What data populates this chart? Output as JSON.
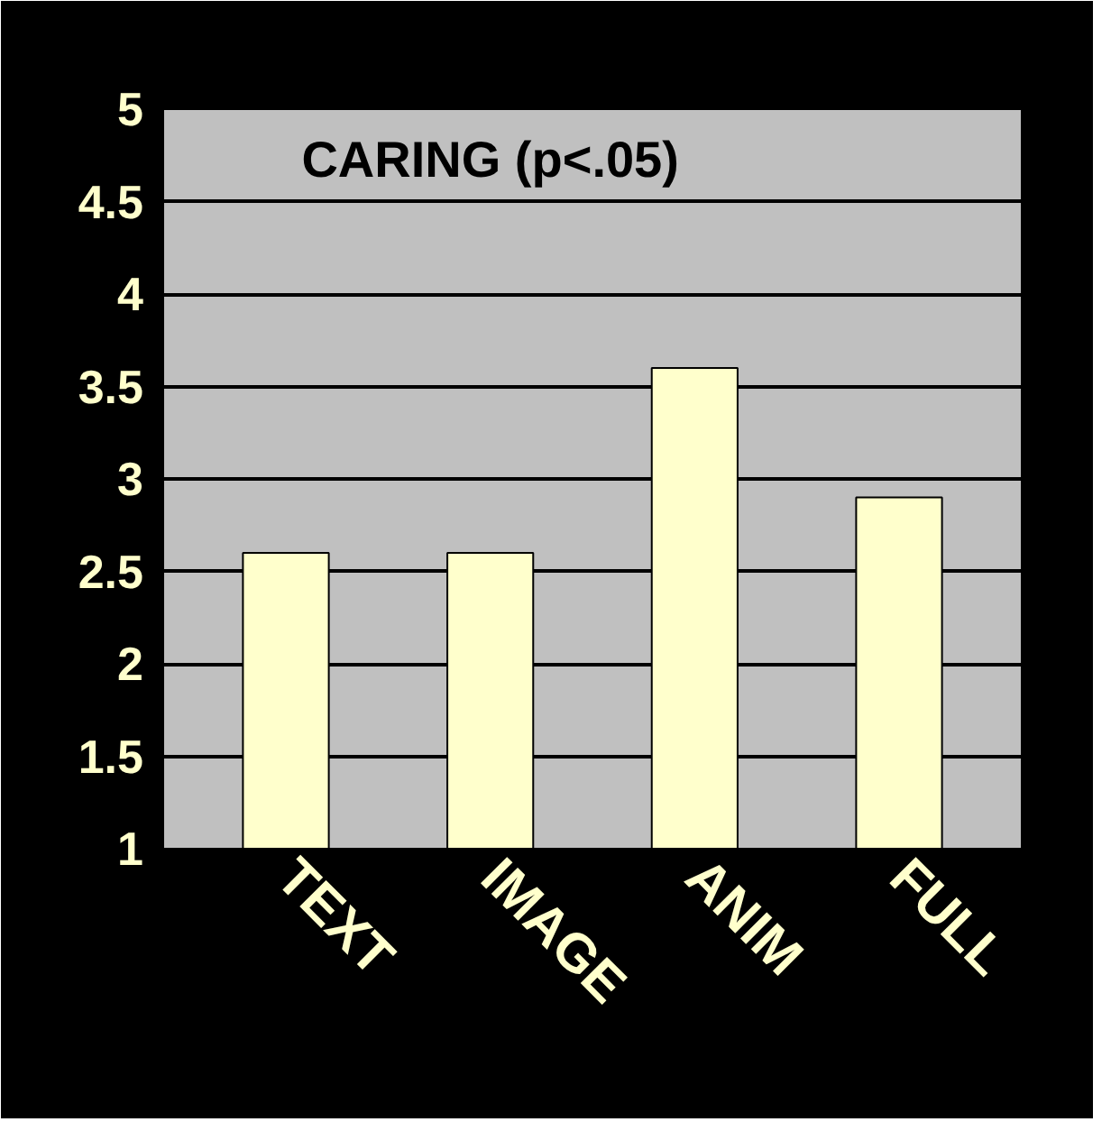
{
  "chart_data": {
    "type": "bar",
    "title": "CARING (p<.05)",
    "categories": [
      "TEXT",
      "IMAGE",
      "ANIM",
      "FULL"
    ],
    "values": [
      2.6,
      2.6,
      3.6,
      2.9
    ],
    "color": "#ffffcc",
    "ylim": [
      1,
      5
    ],
    "yticks": [
      1,
      1.5,
      2,
      2.5,
      3,
      3.5,
      4,
      4.5,
      5
    ],
    "grid": "y"
  }
}
